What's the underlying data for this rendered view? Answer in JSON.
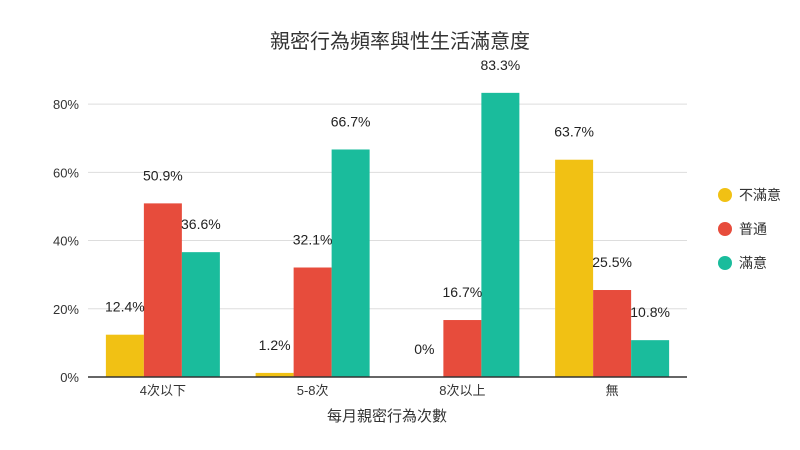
{
  "chart_data": {
    "type": "bar",
    "title": "親密行為頻率與性生活滿意度",
    "xlabel": "每月親密行為次數",
    "ylabel": "",
    "categories": [
      "4次以下",
      "5-8次",
      "8次以上",
      "無"
    ],
    "series": [
      {
        "name": "不滿意",
        "color": "#F1C114",
        "values": [
          12.4,
          1.2,
          0,
          63.7
        ],
        "labels": [
          "12.4%",
          "1.2%",
          "0%",
          "63.7%"
        ]
      },
      {
        "name": "普通",
        "color": "#E74C3C",
        "values": [
          50.9,
          32.1,
          16.7,
          25.5
        ],
        "labels": [
          "50.9%",
          "32.1%",
          "16.7%",
          "25.5%"
        ]
      },
      {
        "name": "滿意",
        "color": "#1ABC9C",
        "values": [
          36.6,
          66.7,
          83.3,
          10.8
        ],
        "labels": [
          "36.6%",
          "66.7%",
          "83.3%",
          "10.8%"
        ]
      }
    ],
    "ylim": [
      0,
      90
    ],
    "yticks": [
      0,
      20,
      40,
      60,
      80
    ],
    "ytick_labels": [
      "0%",
      "20%",
      "40%",
      "60%",
      "80%"
    ],
    "grid": true,
    "legend_position": "right"
  }
}
